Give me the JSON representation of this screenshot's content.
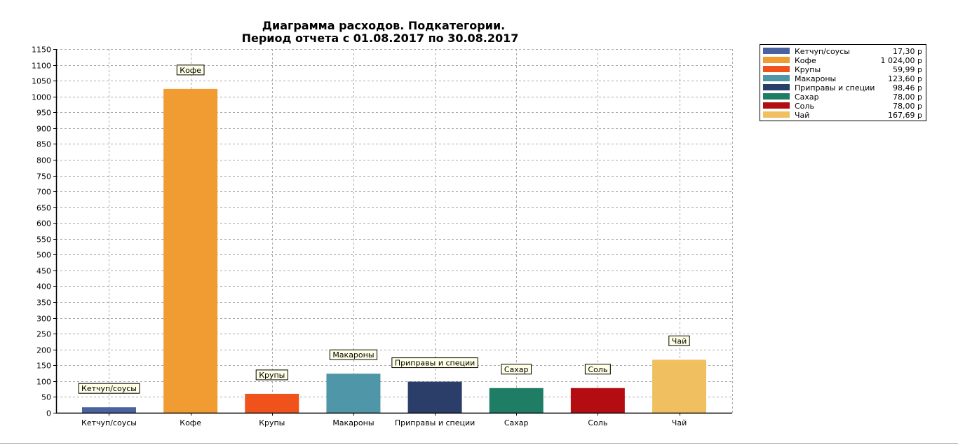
{
  "chart_data": {
    "type": "bar",
    "title": "Диаграмма расходов. Подкатегории.",
    "subtitle": "Период отчета с 01.08.2017 по 30.08.2017",
    "categories": [
      "Кетчуп/соусы",
      "Кофе",
      "Крупы",
      "Макароны",
      "Приправы и специи",
      "Сахар",
      "Соль",
      "Чай"
    ],
    "values": [
      17.3,
      1024.0,
      59.99,
      123.6,
      98.46,
      78.0,
      78.0,
      167.69
    ],
    "value_labels": [
      "17,30 р",
      "1 024,00 р",
      "59,99 р",
      "123,60 р",
      "98,46 р",
      "78,00 р",
      "78,00 р",
      "167,69 р"
    ],
    "colors": [
      "#4a63a0",
      "#f09c32",
      "#f0521c",
      "#4f97a8",
      "#2b3e6a",
      "#1e7d64",
      "#b30d12",
      "#f0c060"
    ],
    "ylim": [
      0,
      1150
    ],
    "ytick_step": 50,
    "grid": true,
    "legend_position": "top-right",
    "xlabel": "",
    "ylabel": ""
  }
}
